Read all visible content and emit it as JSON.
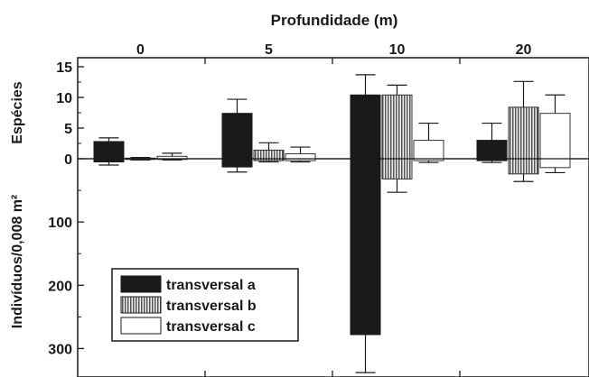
{
  "chart_data": {
    "type": "bar",
    "title": "Profundidade (m)",
    "categories": [
      "0",
      "5",
      "10",
      "20"
    ],
    "upper_panel": {
      "ylabel": "Espécies",
      "ylim": [
        0,
        15
      ],
      "ticks": [
        0,
        5,
        10,
        15
      ],
      "series": [
        {
          "name": "transversal a",
          "values": [
            2.8,
            7.4,
            10.4,
            3.0
          ],
          "errors": [
            0.6,
            2.3,
            3.3,
            2.8
          ]
        },
        {
          "name": "transversal b",
          "values": [
            0.1,
            1.4,
            10.4,
            8.4
          ],
          "errors": [
            0.1,
            1.2,
            1.6,
            4.2
          ]
        },
        {
          "name": "transversal c",
          "values": [
            0.4,
            0.8,
            3.0,
            7.4
          ],
          "errors": [
            0.5,
            1.1,
            2.8,
            3.0
          ]
        }
      ]
    },
    "lower_panel": {
      "ylabel": "Indivíduos/0,008 m²",
      "ylim": [
        0,
        345
      ],
      "ticks": [
        0,
        100,
        200,
        300
      ],
      "series": [
        {
          "name": "transversal a",
          "values": [
            5,
            13,
            278,
            3
          ],
          "errors": [
            5,
            8,
            60,
            3
          ]
        },
        {
          "name": "transversal b",
          "values": [
            1,
            3,
            32,
            24
          ],
          "errors": [
            1,
            2,
            21,
            12
          ]
        },
        {
          "name": "transversal c",
          "values": [
            1,
            3,
            3,
            14
          ],
          "errors": [
            1,
            2,
            3,
            8
          ]
        }
      ]
    },
    "legend": {
      "position": "bottom-left",
      "entries": [
        "transversal a",
        "transversal b",
        "transversal c"
      ]
    }
  }
}
